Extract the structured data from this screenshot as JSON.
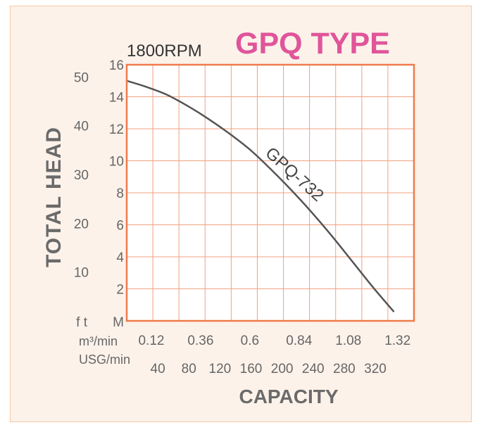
{
  "header": {
    "rpm_label": "1800RPM",
    "type_label": "GPQ TYPE"
  },
  "colors": {
    "plot_background": "#ffffff",
    "grid": "#f2a07f",
    "frame": "#ef7a4c",
    "curve": "#555555",
    "type_title": "#e0559a",
    "card_background": "#fcf2ea"
  },
  "chart_data": {
    "type": "line",
    "title": "GPQ TYPE",
    "subtitle": "1800RPM",
    "xlabel": "CAPACITY",
    "ylabel": "TOTAL HEAD",
    "grid": true,
    "xlim": [
      0,
      1.4
    ],
    "ylim": [
      0,
      16
    ],
    "x_unit_m3": "m³/min",
    "x_ticks_m3": [
      "0.12",
      "0.36",
      "0.6",
      "0.84",
      "1.08",
      "1.32"
    ],
    "x_unit_usg": "USG/min",
    "x_ticks_usg": [
      "40",
      "80",
      "120",
      "160",
      "200",
      "240",
      "280",
      "320"
    ],
    "y_unit_m": "M",
    "y_ticks_m": [
      "2",
      "4",
      "6",
      "8",
      "10",
      "12",
      "14",
      "16"
    ],
    "y_unit_ft": "f t",
    "y_ticks_ft": [
      "10",
      "20",
      "30",
      "40",
      "50"
    ],
    "series": [
      {
        "name": "GPQ-732",
        "x": [
          0.0,
          0.1,
          0.2,
          0.3,
          0.4,
          0.5,
          0.6,
          0.7,
          0.8,
          0.9,
          1.0,
          1.1,
          1.2,
          1.3
        ],
        "y": [
          15.0,
          14.6,
          14.1,
          13.4,
          12.6,
          11.7,
          10.7,
          9.5,
          8.2,
          6.8,
          5.3,
          3.7,
          2.1,
          0.6
        ]
      }
    ]
  }
}
